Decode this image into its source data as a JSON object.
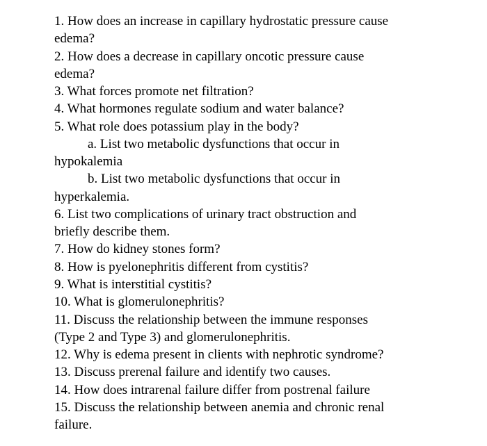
{
  "doc": {
    "font_family": "Times New Roman",
    "font_size_pt": 14,
    "text_color": "#000000",
    "background_color": "#ffffff",
    "lines": [
      {
        "text": "1.  How does an increase in capillary hydrostatic pressure cause",
        "indent": false
      },
      {
        "text": "edema?",
        "indent": false
      },
      {
        "text": "2.  How does a decrease in capillary oncotic pressure cause",
        "indent": false
      },
      {
        "text": "edema?",
        "indent": false
      },
      {
        "text": "3.  What forces promote net filtration?",
        "indent": false
      },
      {
        "text": "4. What hormones regulate sodium and water balance?",
        "indent": false
      },
      {
        "text": "5.  What role does potassium play in the body?",
        "indent": false
      },
      {
        "text": "a.  List two metabolic dysfunctions that occur in",
        "indent": true
      },
      {
        "text": "hypokalemia",
        "indent": false
      },
      {
        "text": "b.  List two metabolic dysfunctions that occur in",
        "indent": true
      },
      {
        "text": "hyperkalemia.",
        "indent": false
      },
      {
        "text": "6.  List two complications of urinary tract obstruction and",
        "indent": false
      },
      {
        "text": "briefly describe them.",
        "indent": false
      },
      {
        "text": "7.  How do kidney stones form?",
        "indent": false
      },
      {
        "text": "8.  How is pyelonephritis different from cystitis?",
        "indent": false
      },
      {
        "text": "9.  What is interstitial cystitis?",
        "indent": false
      },
      {
        "text": "10.  What is glomerulonephritis?",
        "indent": false
      },
      {
        "text": "11.  Discuss the relationship between the immune responses",
        "indent": false
      },
      {
        "text": "(Type 2 and Type 3) and glomerulonephritis.",
        "indent": false
      },
      {
        "text": "12.  Why is edema present in clients with nephrotic syndrome?",
        "indent": false
      },
      {
        "text": "13.  Discuss prerenal failure and identify two causes.",
        "indent": false
      },
      {
        "text": "14.  How does intrarenal failure differ from postrenal failure",
        "indent": false
      },
      {
        "text": "15.  Discuss the relationship between anemia and chronic renal",
        "indent": false
      },
      {
        "text": "failure.",
        "indent": false
      }
    ]
  }
}
